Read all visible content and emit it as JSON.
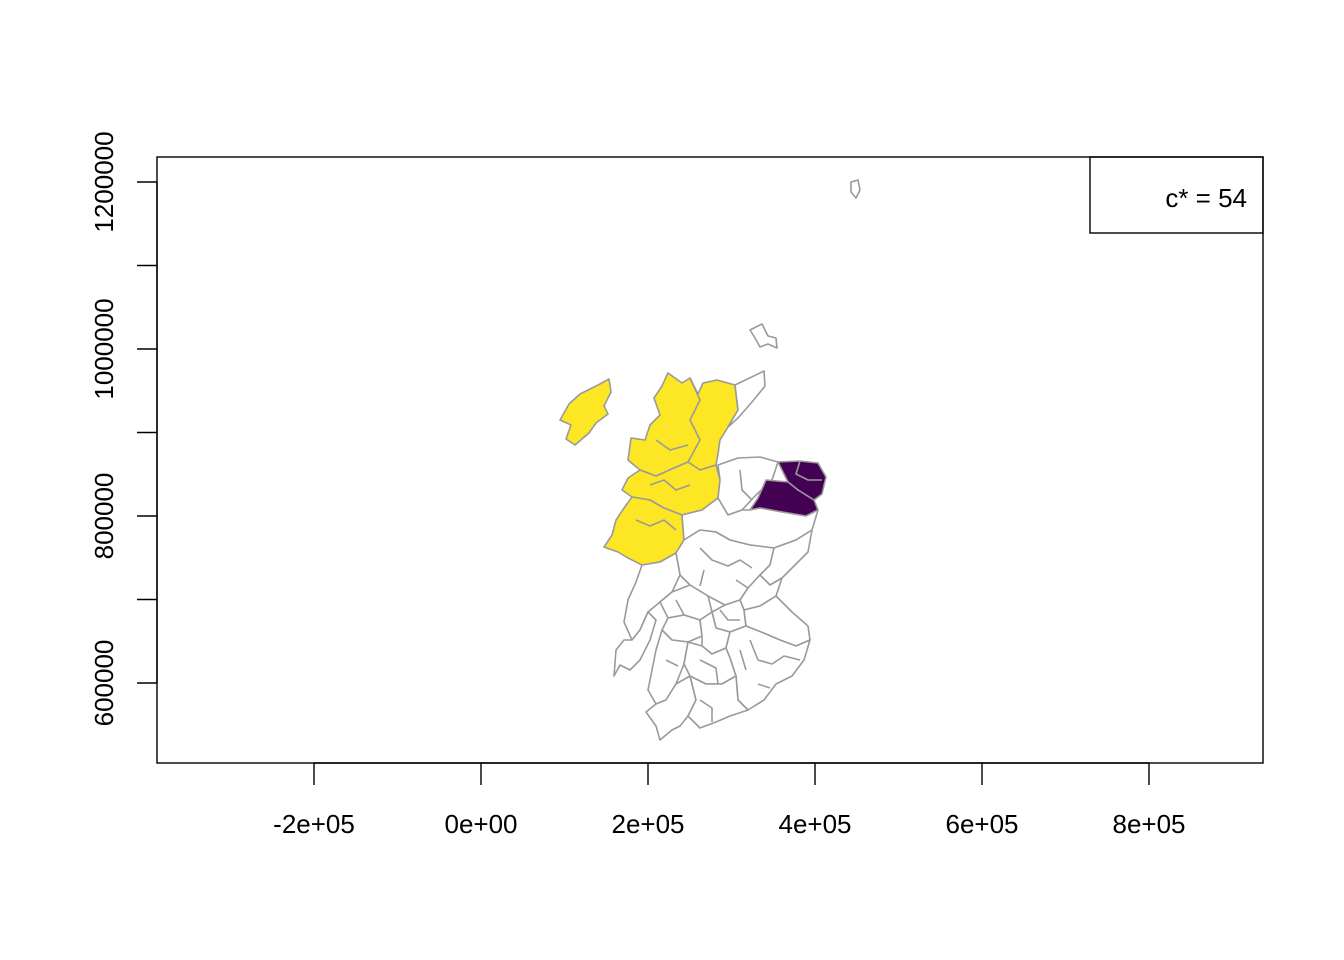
{
  "chart_data": {
    "type": "map",
    "xaxis": {
      "ticks": [
        -200000,
        0,
        200000,
        400000,
        600000,
        800000
      ],
      "tick_labels": [
        "-2e+05",
        "0e+00",
        "2e+05",
        "4e+05",
        "6e+05",
        "8e+05"
      ]
    },
    "yaxis": {
      "ticks": [
        600000,
        700000,
        800000,
        900000,
        1000000,
        1100000,
        1200000
      ],
      "tick_labels": [
        "600000",
        "",
        "800000",
        "",
        "1000000",
        "",
        "1200000"
      ]
    },
    "legend": {
      "position": "top-right",
      "text": "c* = 54"
    },
    "colors": {
      "highlight_high": "#FDE725",
      "highlight_low": "#440154",
      "border": "#9a9a9a",
      "background": "#ffffff"
    }
  }
}
